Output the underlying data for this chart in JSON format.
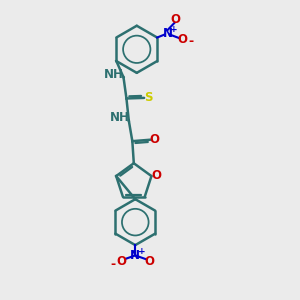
{
  "bg_color": "#ebebeb",
  "bond_color": "#2d7070",
  "bond_width": 1.8,
  "atom_colors": {
    "N": "#0000cc",
    "O": "#cc0000",
    "S": "#cccc00",
    "NH": "#2d7070"
  },
  "fig_size": [
    3.0,
    3.0
  ],
  "dpi": 100,
  "xlim": [
    0,
    10
  ],
  "ylim": [
    0,
    10
  ]
}
